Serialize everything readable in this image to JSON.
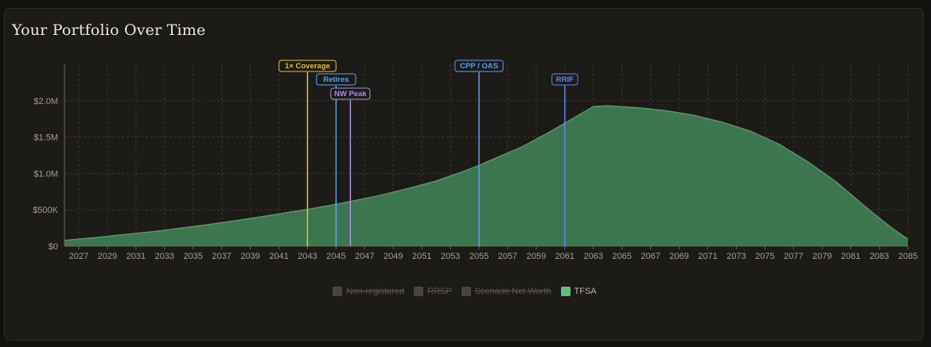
{
  "title": "Your Portfolio Over Time",
  "colors": {
    "area_fill": "#3f7a52",
    "area_stroke": "#4e9a63",
    "grid": "#3a3630",
    "axis": "#6b6459"
  },
  "legend": [
    {
      "label": "Non-registered",
      "color": "#4a4540",
      "active": false
    },
    {
      "label": "RRSP",
      "color": "#4a4540",
      "active": false
    },
    {
      "label": "Scenario Net Worth",
      "color": "#4a4540",
      "active": false
    },
    {
      "label": "TFSA",
      "color": "#5fbf7a",
      "active": true
    }
  ],
  "chart_data": {
    "type": "area",
    "title": "Your Portfolio Over Time",
    "xlim": [
      2026,
      2085
    ],
    "ylim": [
      0,
      2500000
    ],
    "x_ticks": [
      "2027",
      "2029",
      "2031",
      "2033",
      "2035",
      "2037",
      "2039",
      "2041",
      "2043",
      "2045",
      "2047",
      "2049",
      "2051",
      "2053",
      "2055",
      "2057",
      "2059",
      "2061",
      "2063",
      "2065",
      "2067",
      "2069",
      "2071",
      "2073",
      "2075",
      "2077",
      "2079",
      "2081",
      "2083",
      "2085"
    ],
    "y_ticks": [
      {
        "value": 0,
        "label": "$0"
      },
      {
        "value": 500000,
        "label": "$500K"
      },
      {
        "value": 1000000,
        "label": "$1.0M"
      },
      {
        "value": 1500000,
        "label": "$1.5M"
      },
      {
        "value": 2000000,
        "label": "$2.0M"
      }
    ],
    "series": [
      {
        "name": "TFSA",
        "x": [
          2026,
          2028,
          2030,
          2032,
          2034,
          2036,
          2038,
          2040,
          2042,
          2043,
          2044,
          2045,
          2046,
          2048,
          2050,
          2052,
          2054,
          2055,
          2056,
          2058,
          2060,
          2061,
          2062,
          2063,
          2064,
          2066,
          2068,
          2070,
          2072,
          2074,
          2076,
          2078,
          2080,
          2082,
          2084,
          2085
        ],
        "values": [
          80000,
          115000,
          155000,
          195000,
          245000,
          295000,
          350000,
          410000,
          475000,
          505000,
          540000,
          575000,
          615000,
          695000,
          790000,
          895000,
          1035000,
          1110000,
          1195000,
          1365000,
          1575000,
          1690000,
          1805000,
          1920000,
          1930000,
          1905000,
          1865000,
          1800000,
          1705000,
          1580000,
          1400000,
          1160000,
          880000,
          545000,
          230000,
          95000
        ]
      }
    ],
    "events": [
      {
        "label": "1× Coverage",
        "x": 2043,
        "color": "#e8bf3a",
        "level": 0
      },
      {
        "label": "Retires",
        "x": 2045,
        "color": "#5b9cf0",
        "level": 1
      },
      {
        "label": "NW Peak",
        "x": 2046,
        "color": "#a98ee8",
        "level": 2
      },
      {
        "label": "CPP / OAS",
        "x": 2055,
        "color": "#5b9cf0",
        "level": 0
      },
      {
        "label": "RRIF",
        "x": 2061,
        "color": "#5b84f0",
        "level": 1
      }
    ]
  }
}
